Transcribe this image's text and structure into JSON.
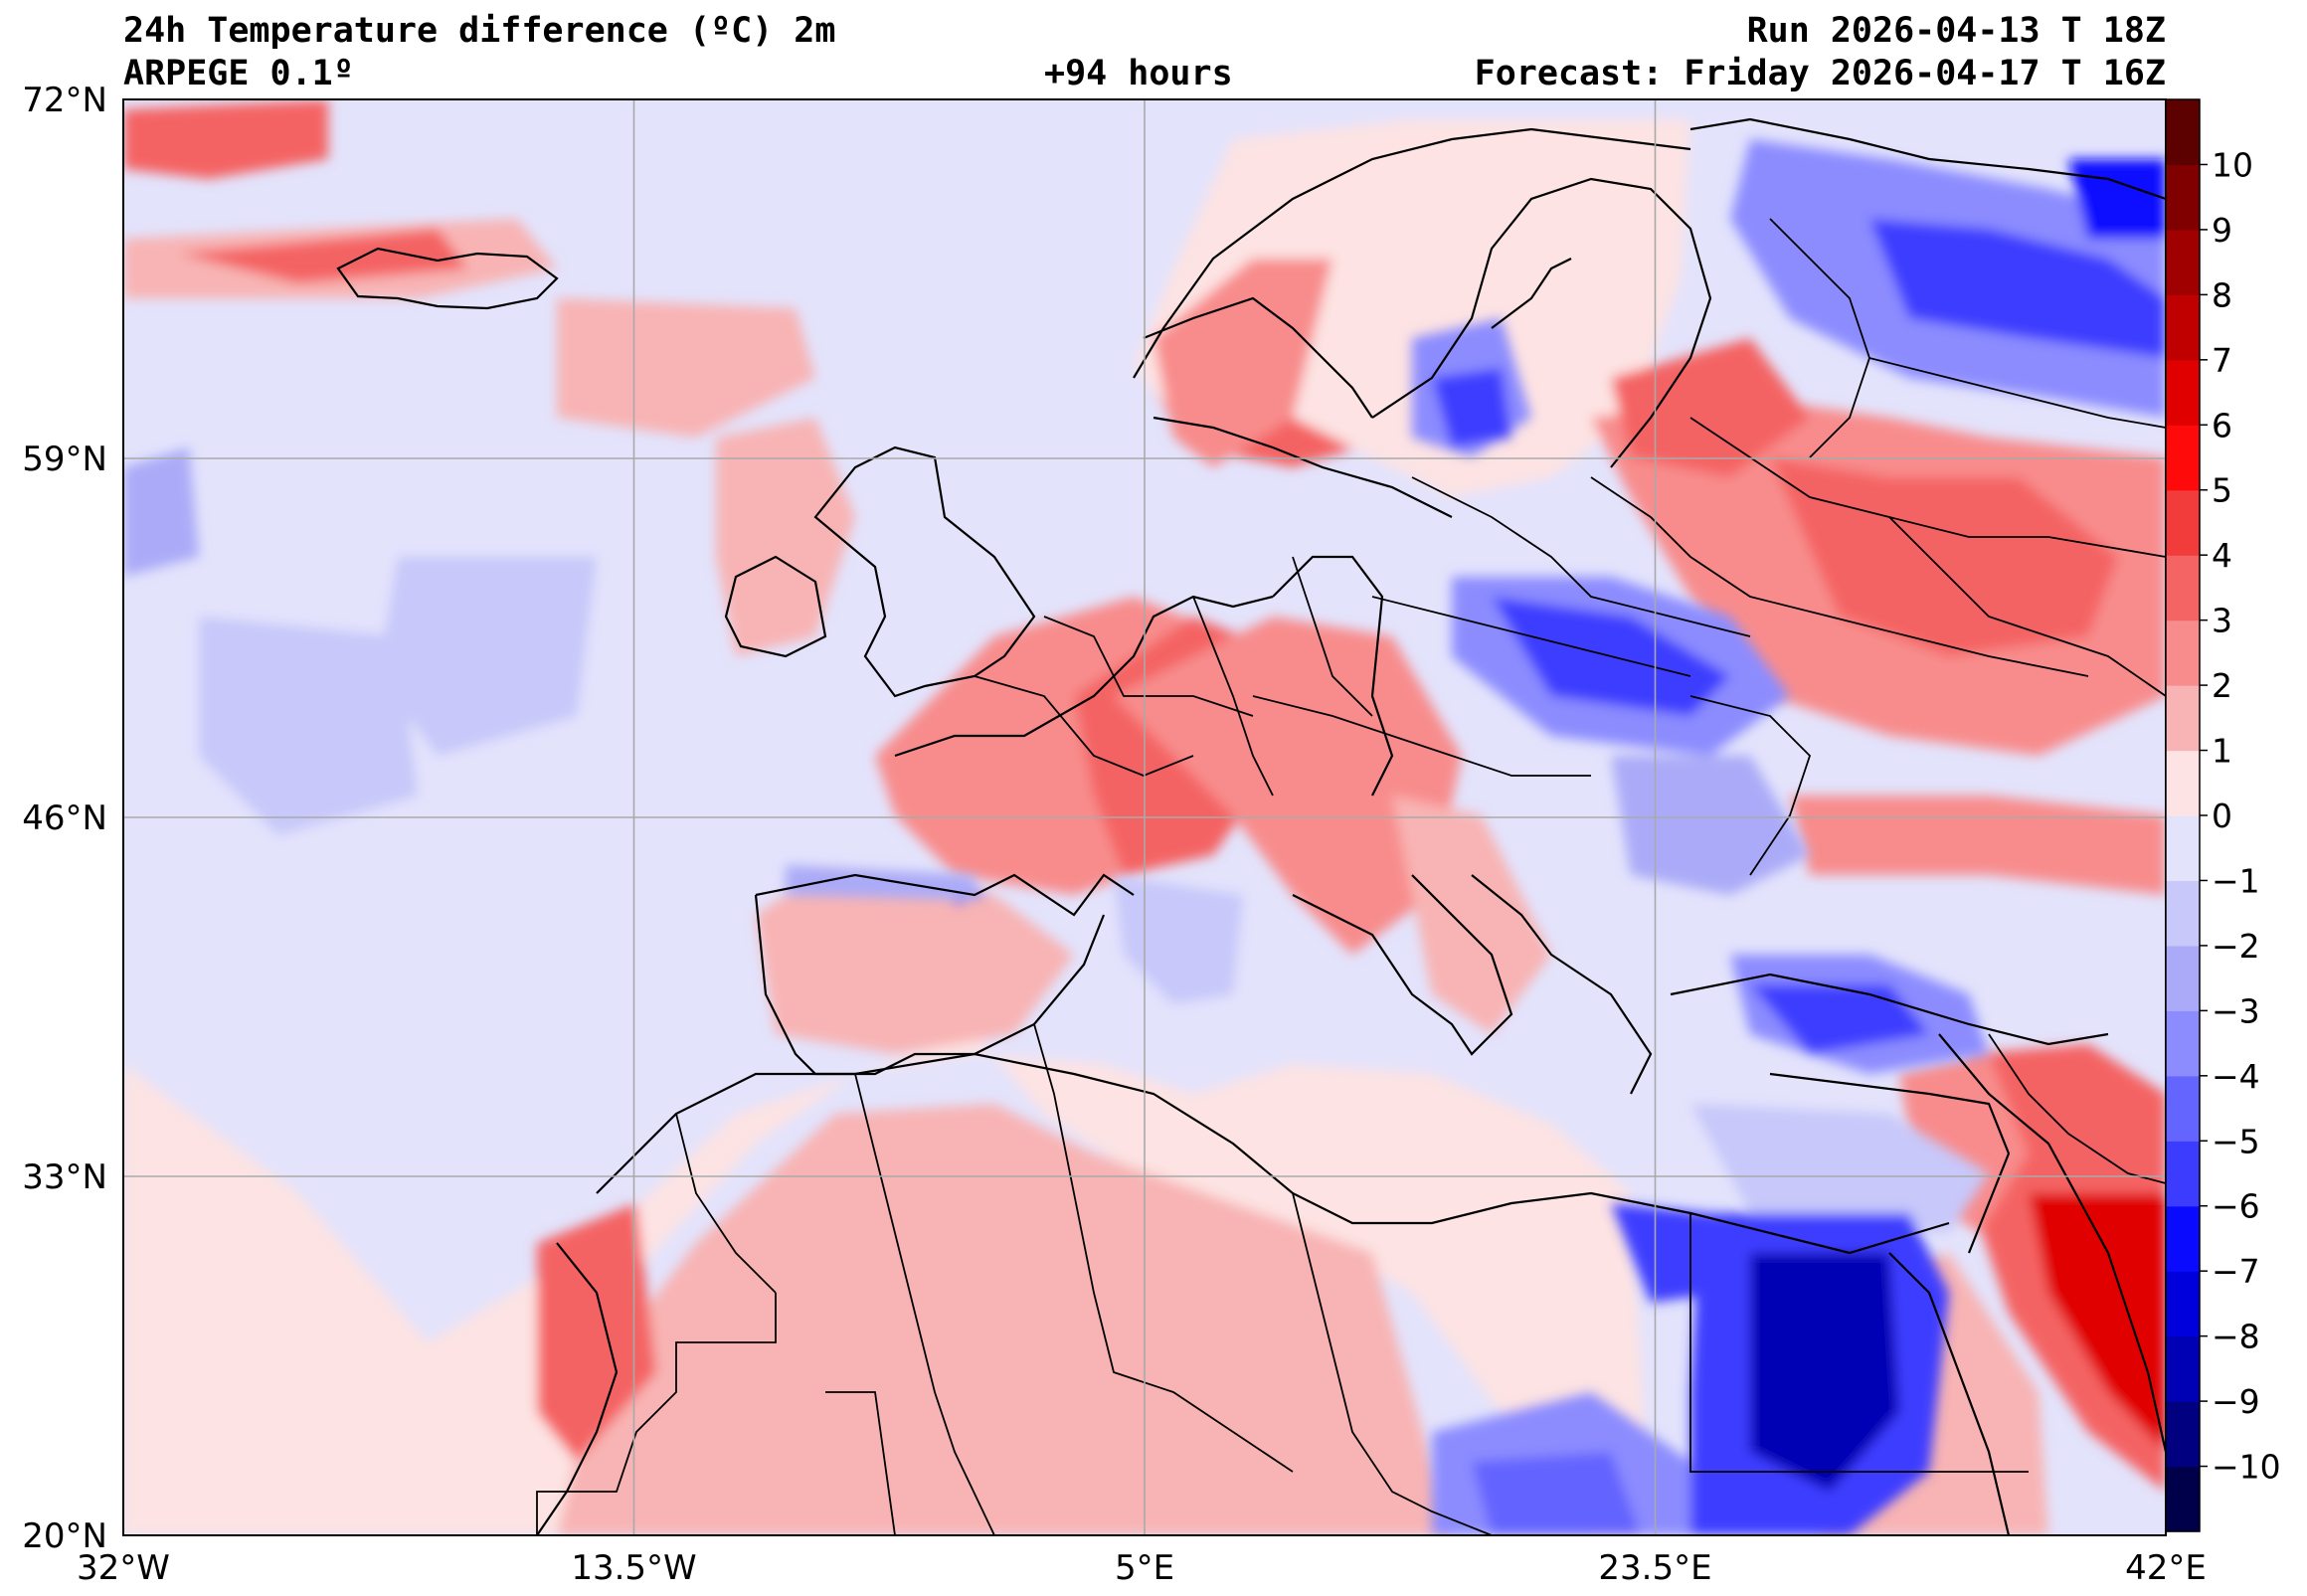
{
  "header": {
    "title": "24h Temperature difference (ºC) 2m",
    "model": "ARPEGE 0.1º",
    "lead": "+94 hours",
    "run": "Run 2026-04-13 T 18Z",
    "forecast": "Forecast: Friday 2026-04-17 T 16Z"
  },
  "map": {
    "lon_range": [
      -32,
      42
    ],
    "lat_range": [
      20,
      72
    ],
    "lat_ticks": [
      {
        "value": 72,
        "label": "72°N"
      },
      {
        "value": 59,
        "label": "59°N"
      },
      {
        "value": 46,
        "label": "46°N"
      },
      {
        "value": 33,
        "label": "33°N"
      },
      {
        "value": 20,
        "label": "20°N"
      }
    ],
    "lon_ticks": [
      {
        "value": -32,
        "label": "32°W"
      },
      {
        "value": -13.5,
        "label": "13.5°W"
      },
      {
        "value": 5,
        "label": "5°E"
      },
      {
        "value": 23.5,
        "label": "23.5°E"
      },
      {
        "value": 42,
        "label": "42°E"
      }
    ]
  },
  "colorbar": {
    "levels": [
      -11,
      -10,
      -9,
      -8,
      -7,
      -6,
      -5,
      -4,
      -3,
      -2,
      -1,
      0,
      1,
      2,
      3,
      4,
      5,
      6,
      7,
      8,
      9,
      10,
      11
    ],
    "colors": [
      "#00004a",
      "#000080",
      "#0000b4",
      "#0000dc",
      "#0a0aff",
      "#3c3cff",
      "#6464ff",
      "#8c8cff",
      "#aaaaf8",
      "#c8c8fa",
      "#e3e3fc",
      "#fde3e3",
      "#f8b4b4",
      "#f88c8c",
      "#f46464",
      "#f23c3c",
      "#ff0a0a",
      "#e00000",
      "#c00000",
      "#a00000",
      "#800000",
      "#5c0000"
    ],
    "tick_labels": [
      "−10",
      "−9",
      "−8",
      "−7",
      "−6",
      "−5",
      "−4",
      "−3",
      "−2",
      "−1",
      "0",
      "1",
      "2",
      "3",
      "4",
      "5",
      "6",
      "7",
      "8",
      "9",
      "10"
    ],
    "tick_values": [
      -10,
      -9,
      -8,
      -7,
      -6,
      -5,
      -4,
      -3,
      -2,
      -1,
      0,
      1,
      2,
      3,
      4,
      5,
      6,
      7,
      8,
      9,
      10
    ]
  }
}
